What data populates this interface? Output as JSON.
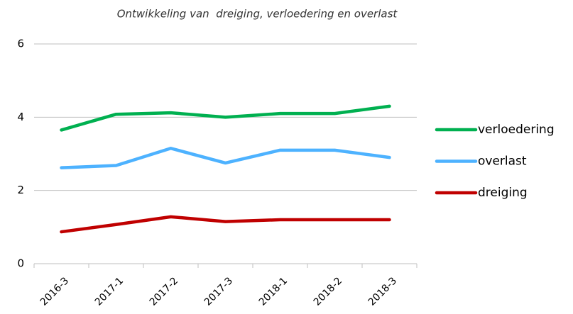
{
  "chart_data": {
    "type": "line",
    "title": "Ontwikkeling van  dreiging, verloedering en overlast",
    "categories": [
      "2016-3",
      "2017-1",
      "2017-2",
      "2017-3",
      "2018-1",
      "2018-2",
      "2018-3"
    ],
    "series": [
      {
        "name": "verloedering",
        "color": "#00b050",
        "values": [
          3.65,
          4.08,
          4.12,
          4.0,
          4.1,
          4.1,
          4.3
        ]
      },
      {
        "name": "overlast",
        "color": "#4db2ff",
        "values": [
          2.62,
          2.68,
          3.15,
          2.75,
          3.1,
          3.1,
          2.9
        ]
      },
      {
        "name": "dreiging",
        "color": "#c00000",
        "values": [
          0.87,
          1.07,
          1.28,
          1.15,
          1.2,
          1.2,
          1.2
        ]
      }
    ],
    "ylim": [
      0,
      6
    ],
    "yticks": [
      0,
      2,
      4,
      6
    ],
    "grid": true,
    "legend": "right"
  }
}
